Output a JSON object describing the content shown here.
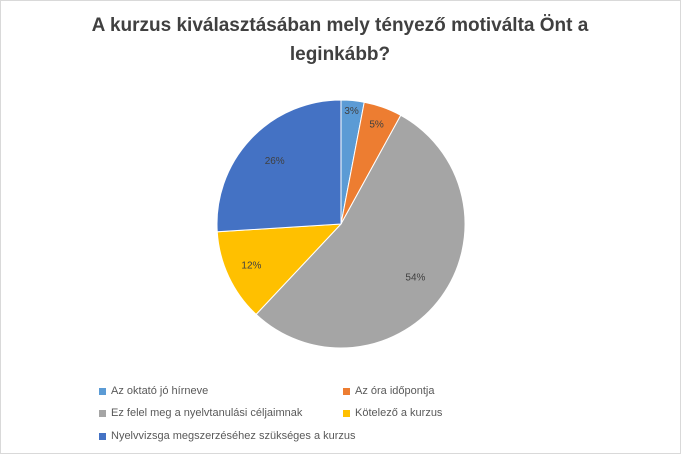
{
  "chart_data": {
    "type": "pie",
    "title_lines": [
      "A kurzus  kiválasztásában  mely tényező motiválta  Önt a",
      "leginkább?"
    ],
    "categories": [
      "Az oktató jó hírneve",
      "Az óra időpontja",
      "Ez felel meg a nyelvtanulási céljaimnak",
      "Kötelező a kurzus",
      "Nyelvvizsga megszerzéséhez szükséges a kurzus"
    ],
    "values": [
      3,
      5,
      54,
      12,
      26
    ],
    "value_labels": [
      "3%",
      "5%",
      "54%",
      "12%",
      "26%"
    ],
    "colors": [
      "#5b9bd5",
      "#ed7d31",
      "#a5a5a5",
      "#ffc000",
      "#4472c4"
    ],
    "legend_position": "bottom"
  }
}
